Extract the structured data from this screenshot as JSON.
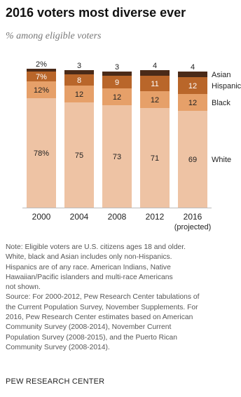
{
  "title": "2016 voters most diverse ever",
  "subtitle": "% among eligible voters",
  "chart_data": {
    "type": "bar",
    "stacked": true,
    "categories": [
      "2000",
      "2004",
      "2008",
      "2012",
      "2016"
    ],
    "category_sublabels": [
      "",
      "",
      "",
      "",
      "(projected)"
    ],
    "series": [
      {
        "name": "White",
        "values": [
          78,
          75,
          73,
          71,
          69
        ],
        "labels": [
          "78%",
          "75",
          "73",
          "71",
          "69"
        ],
        "color": "#EEC3A4"
      },
      {
        "name": "Black",
        "values": [
          12,
          12,
          12,
          12,
          12
        ],
        "labels": [
          "12%",
          "12",
          "12",
          "12",
          "12"
        ],
        "color": "#E6A069"
      },
      {
        "name": "Hispanic",
        "values": [
          7,
          8,
          9,
          11,
          12
        ],
        "labels": [
          "7%",
          "8",
          "9",
          "11",
          "12"
        ],
        "color": "#B9662A"
      },
      {
        "name": "Asian",
        "values": [
          2,
          3,
          3,
          4,
          4
        ],
        "labels": [
          "2%",
          "3",
          "3",
          "4",
          "4"
        ],
        "color": "#4A2A18"
      }
    ],
    "ylim": [
      0,
      100
    ],
    "grid": false,
    "legend": "right"
  },
  "notes": [
    "Note: Eligible voters are U.S. citizens ages 18 and older.",
    "White, black and Asian includes only non-Hispanics.",
    "Hispanics are of any race. American Indians, Native",
    "Hawaiian/Pacific islanders and multi-race Americans",
    "not shown.",
    "Source: For 2000-2012, Pew Research Center tabulations of",
    "the Current Population Survey, November Supplements. For",
    "2016, Pew Research Center estimates based on American",
    "Community Survey (2008-2014), November Current",
    "Population Survey (2008-2015), and the Puerto Rican",
    "Community Survey (2008-2014)."
  ],
  "source_org": "PEW RESEARCH CENTER"
}
